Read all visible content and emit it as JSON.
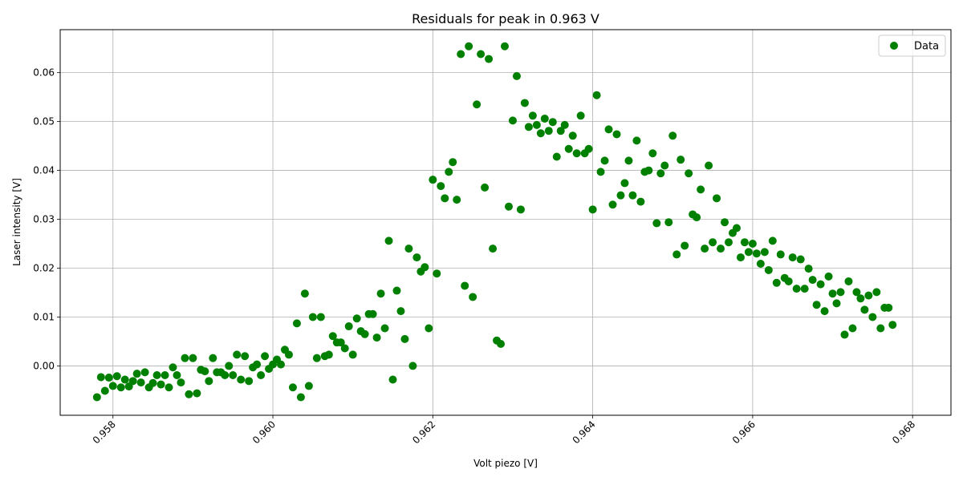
{
  "chart_data": {
    "type": "scatter",
    "title": "Residuals for peak in 0.963 V",
    "xlabel": "Volt piezo [V]",
    "ylabel": "Laser intensity [V]",
    "xlim": [
      0.95734,
      0.96848
    ],
    "ylim": [
      -0.0101,
      0.0688
    ],
    "xticks": [
      0.958,
      0.96,
      0.962,
      0.964,
      0.966,
      0.968
    ],
    "xtick_labels": [
      "0.958",
      "0.960",
      "0.962",
      "0.964",
      "0.966",
      "0.968"
    ],
    "yticks": [
      0.0,
      0.01,
      0.02,
      0.03,
      0.04,
      0.05,
      0.06
    ],
    "ytick_labels": [
      "0.00",
      "0.01",
      "0.02",
      "0.03",
      "0.04",
      "0.05",
      "0.06"
    ],
    "grid": true,
    "legend_position": "top-right",
    "color": "#008000",
    "series": [
      {
        "name": "Data",
        "points": [
          [
            0.9578,
            -0.0064
          ],
          [
            0.95785,
            -0.0023
          ],
          [
            0.9579,
            -0.0051
          ],
          [
            0.95795,
            -0.0024
          ],
          [
            0.958,
            -0.0041
          ],
          [
            0.95805,
            -0.0021
          ],
          [
            0.9581,
            -0.0044
          ],
          [
            0.95815,
            -0.0028
          ],
          [
            0.9582,
            -0.0042
          ],
          [
            0.95825,
            -0.0031
          ],
          [
            0.9583,
            -0.0016
          ],
          [
            0.95835,
            -0.0034
          ],
          [
            0.9584,
            -0.0013
          ],
          [
            0.95845,
            -0.0044
          ],
          [
            0.9585,
            -0.0035
          ],
          [
            0.95855,
            -0.0019
          ],
          [
            0.9586,
            -0.0038
          ],
          [
            0.95865,
            -0.0019
          ],
          [
            0.9587,
            -0.0044
          ],
          [
            0.95875,
            -0.0003
          ],
          [
            0.9588,
            -0.0019
          ],
          [
            0.95885,
            -0.0034
          ],
          [
            0.9589,
            0.0016
          ],
          [
            0.95895,
            -0.0058
          ],
          [
            0.959,
            0.0016
          ],
          [
            0.95905,
            -0.0056
          ],
          [
            0.9591,
            -0.0008
          ],
          [
            0.95915,
            -0.0011
          ],
          [
            0.9592,
            -0.0031
          ],
          [
            0.95925,
            0.0016
          ],
          [
            0.9593,
            -0.0013
          ],
          [
            0.95935,
            -0.0013
          ],
          [
            0.9594,
            -0.0019
          ],
          [
            0.95945,
            0.0
          ],
          [
            0.9595,
            -0.0019
          ],
          [
            0.95955,
            0.0023
          ],
          [
            0.9596,
            -0.0028
          ],
          [
            0.95965,
            0.002
          ],
          [
            0.9597,
            -0.0031
          ],
          [
            0.95975,
            -0.0003
          ],
          [
            0.9598,
            0.0003
          ],
          [
            0.95985,
            -0.0019
          ],
          [
            0.9599,
            0.002
          ],
          [
            0.95995,
            -0.0006
          ],
          [
            0.96,
            0.0003
          ],
          [
            0.96005,
            0.0013
          ],
          [
            0.9601,
            0.0003
          ],
          [
            0.96015,
            0.0033
          ],
          [
            0.9602,
            0.0023
          ],
          [
            0.96025,
            -0.0044
          ],
          [
            0.9603,
            0.0087
          ],
          [
            0.96035,
            -0.0064
          ],
          [
            0.9604,
            0.0148
          ],
          [
            0.96045,
            -0.0041
          ],
          [
            0.9605,
            0.01
          ],
          [
            0.96055,
            0.0016
          ],
          [
            0.9606,
            0.01
          ],
          [
            0.96065,
            0.002
          ],
          [
            0.9607,
            0.0023
          ],
          [
            0.96075,
            0.0061
          ],
          [
            0.9608,
            0.0048
          ],
          [
            0.96085,
            0.0048
          ],
          [
            0.9609,
            0.0036
          ],
          [
            0.96095,
            0.0081
          ],
          [
            0.961,
            0.0023
          ],
          [
            0.96105,
            0.0097
          ],
          [
            0.9611,
            0.0071
          ],
          [
            0.96115,
            0.0065
          ],
          [
            0.9612,
            0.0106
          ],
          [
            0.96125,
            0.0106
          ],
          [
            0.9613,
            0.0058
          ],
          [
            0.96135,
            0.0148
          ],
          [
            0.9614,
            0.0077
          ],
          [
            0.96145,
            0.0256
          ],
          [
            0.9615,
            -0.0028
          ],
          [
            0.96155,
            0.0154
          ],
          [
            0.9616,
            0.0112
          ],
          [
            0.96165,
            0.0055
          ],
          [
            0.9617,
            0.024
          ],
          [
            0.96175,
            0.0
          ],
          [
            0.9618,
            0.0222
          ],
          [
            0.96185,
            0.0193
          ],
          [
            0.9619,
            0.0202
          ],
          [
            0.96195,
            0.0077
          ],
          [
            0.962,
            0.0381
          ],
          [
            0.96205,
            0.0189
          ],
          [
            0.9621,
            0.0368
          ],
          [
            0.96215,
            0.0343
          ],
          [
            0.9622,
            0.0397
          ],
          [
            0.96225,
            0.0417
          ],
          [
            0.9623,
            0.034
          ],
          [
            0.96235,
            0.0638
          ],
          [
            0.9624,
            0.0164
          ],
          [
            0.96245,
            0.0654
          ],
          [
            0.9625,
            0.0141
          ],
          [
            0.96255,
            0.0535
          ],
          [
            0.9626,
            0.0638
          ],
          [
            0.96265,
            0.0365
          ],
          [
            0.9627,
            0.0628
          ],
          [
            0.96275,
            0.024
          ],
          [
            0.9628,
            0.0052
          ],
          [
            0.96285,
            0.0045
          ],
          [
            0.9629,
            0.0654
          ],
          [
            0.96295,
            0.0326
          ],
          [
            0.963,
            0.0502
          ],
          [
            0.96305,
            0.0593
          ],
          [
            0.9631,
            0.032
          ],
          [
            0.96315,
            0.0538
          ],
          [
            0.9632,
            0.0489
          ],
          [
            0.96325,
            0.0512
          ],
          [
            0.9633,
            0.0493
          ],
          [
            0.96335,
            0.0476
          ],
          [
            0.9634,
            0.0506
          ],
          [
            0.96345,
            0.0481
          ],
          [
            0.9635,
            0.0499
          ],
          [
            0.96355,
            0.0428
          ],
          [
            0.9636,
            0.0481
          ],
          [
            0.96365,
            0.0493
          ],
          [
            0.9637,
            0.0444
          ],
          [
            0.96375,
            0.0471
          ],
          [
            0.9638,
            0.0435
          ],
          [
            0.96385,
            0.0512
          ],
          [
            0.9639,
            0.0435
          ],
          [
            0.96395,
            0.0444
          ],
          [
            0.964,
            0.032
          ],
          [
            0.96405,
            0.0554
          ],
          [
            0.9641,
            0.0397
          ],
          [
            0.96415,
            0.042
          ],
          [
            0.9642,
            0.0484
          ],
          [
            0.96425,
            0.033
          ],
          [
            0.9643,
            0.0474
          ],
          [
            0.96435,
            0.0349
          ],
          [
            0.9644,
            0.0374
          ],
          [
            0.96445,
            0.042
          ],
          [
            0.9645,
            0.0349
          ],
          [
            0.96455,
            0.0461
          ],
          [
            0.9646,
            0.0336
          ],
          [
            0.96465,
            0.0397
          ],
          [
            0.9647,
            0.04
          ],
          [
            0.96475,
            0.0435
          ],
          [
            0.9648,
            0.0292
          ],
          [
            0.96485,
            0.0394
          ],
          [
            0.9649,
            0.041
          ],
          [
            0.96495,
            0.0294
          ],
          [
            0.965,
            0.0471
          ],
          [
            0.96505,
            0.0228
          ],
          [
            0.9651,
            0.0422
          ],
          [
            0.96515,
            0.0246
          ],
          [
            0.9652,
            0.0394
          ],
          [
            0.96525,
            0.031
          ],
          [
            0.9653,
            0.0304
          ],
          [
            0.96535,
            0.0361
          ],
          [
            0.9654,
            0.024
          ],
          [
            0.96545,
            0.041
          ],
          [
            0.9655,
            0.0253
          ],
          [
            0.96555,
            0.0343
          ],
          [
            0.9656,
            0.024
          ],
          [
            0.96565,
            0.0294
          ],
          [
            0.9657,
            0.0253
          ],
          [
            0.96575,
            0.0272
          ],
          [
            0.9658,
            0.0282
          ],
          [
            0.96585,
            0.0222
          ],
          [
            0.9659,
            0.0253
          ],
          [
            0.96595,
            0.0233
          ],
          [
            0.966,
            0.025
          ],
          [
            0.96605,
            0.023
          ],
          [
            0.9661,
            0.0209
          ],
          [
            0.96615,
            0.0233
          ],
          [
            0.9662,
            0.0196
          ],
          [
            0.96625,
            0.0256
          ],
          [
            0.9663,
            0.017
          ],
          [
            0.96635,
            0.0228
          ],
          [
            0.9664,
            0.018
          ],
          [
            0.96645,
            0.0173
          ],
          [
            0.9665,
            0.0222
          ],
          [
            0.96655,
            0.0158
          ],
          [
            0.9666,
            0.0218
          ],
          [
            0.96665,
            0.0158
          ],
          [
            0.9667,
            0.0199
          ],
          [
            0.96675,
            0.0176
          ],
          [
            0.9668,
            0.0125
          ],
          [
            0.96685,
            0.0167
          ],
          [
            0.9669,
            0.0112
          ],
          [
            0.96695,
            0.0183
          ],
          [
            0.967,
            0.0148
          ],
          [
            0.96705,
            0.0128
          ],
          [
            0.9671,
            0.0151
          ],
          [
            0.96715,
            0.0064
          ],
          [
            0.9672,
            0.0173
          ],
          [
            0.96725,
            0.0077
          ],
          [
            0.9673,
            0.0151
          ],
          [
            0.96735,
            0.0138
          ],
          [
            0.9674,
            0.0115
          ],
          [
            0.96745,
            0.0144
          ],
          [
            0.9675,
            0.01
          ],
          [
            0.96755,
            0.0151
          ],
          [
            0.9676,
            0.0077
          ],
          [
            0.96765,
            0.0119
          ],
          [
            0.9677,
            0.0119
          ],
          [
            0.96775,
            0.0084
          ]
        ]
      }
    ]
  }
}
